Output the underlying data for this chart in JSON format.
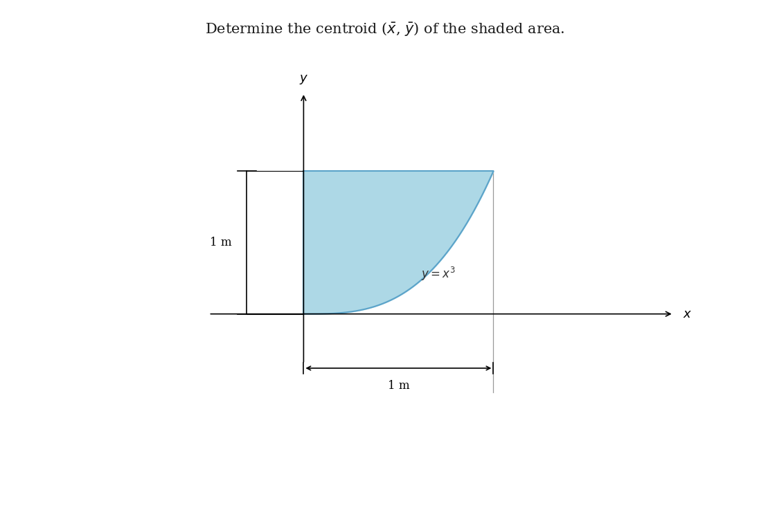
{
  "title": "Determine the centroid ($\\bar{x}$, $\\bar{y}$) of the shaded area.",
  "title_fontsize": 15,
  "title_color": "#1a1a1a",
  "background_color": "#ffffff",
  "shade_color": "#add8e6",
  "shade_edge_color": "#5ba3c9",
  "curve_label": "$y = x^3$",
  "label_1m_left": "1 m",
  "label_1m_bottom": "1 m",
  "axis_label_x": "$x$",
  "axis_label_y": "$y$",
  "figsize": [
    10.96,
    7.63
  ],
  "dpi": 100
}
